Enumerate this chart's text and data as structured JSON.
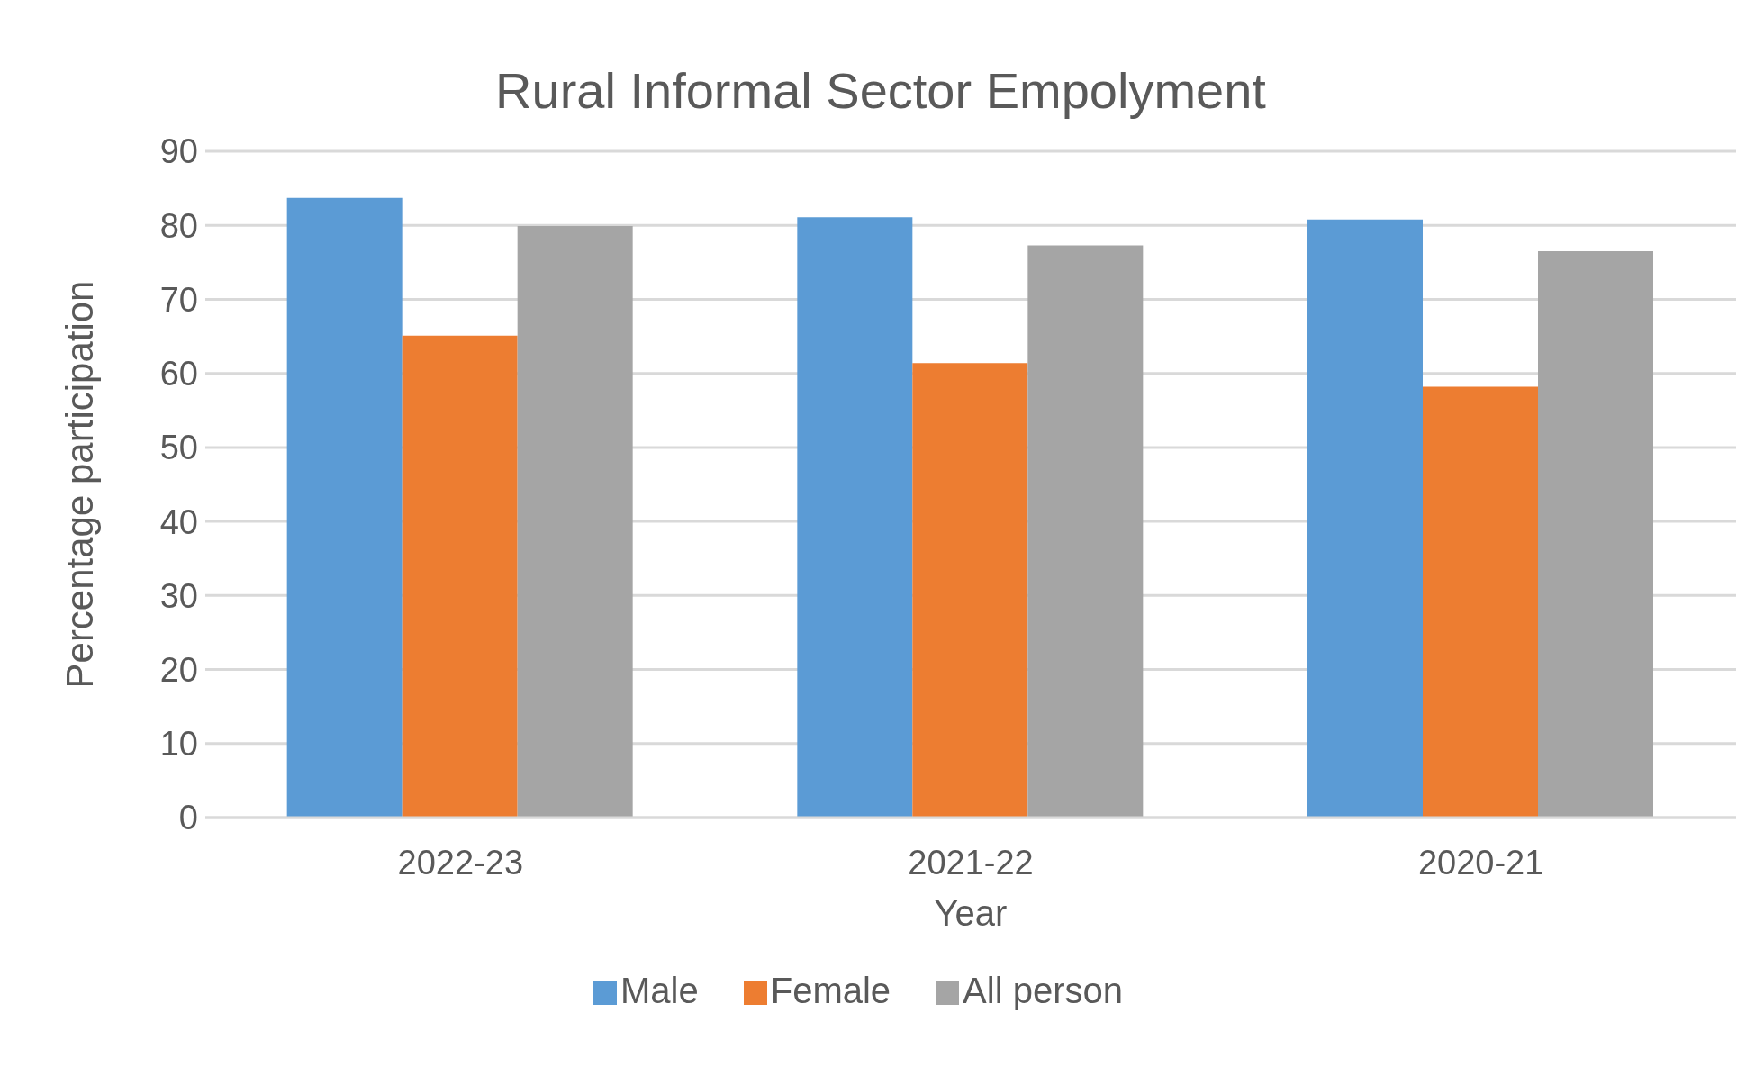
{
  "chart_data": {
    "type": "bar",
    "title": "Rural Informal Sector Empolyment",
    "xlabel": "Year",
    "ylabel": "Percentage participation",
    "categories": [
      "2022-23",
      "2021-22",
      "2020-21"
    ],
    "series": [
      {
        "name": "Male",
        "color": "#5b9bd5",
        "values": [
          83.7,
          81.1,
          80.8
        ]
      },
      {
        "name": "Female",
        "color": "#ed7d31",
        "values": [
          65.1,
          61.4,
          58.2
        ]
      },
      {
        "name": "All person",
        "color": "#a5a5a5",
        "values": [
          79.9,
          77.3,
          76.5
        ]
      }
    ],
    "ylim": [
      0,
      90
    ],
    "yticks": [
      0,
      10,
      20,
      30,
      40,
      50,
      60,
      70,
      80,
      90
    ],
    "grid": "y",
    "legend": "bottom"
  }
}
